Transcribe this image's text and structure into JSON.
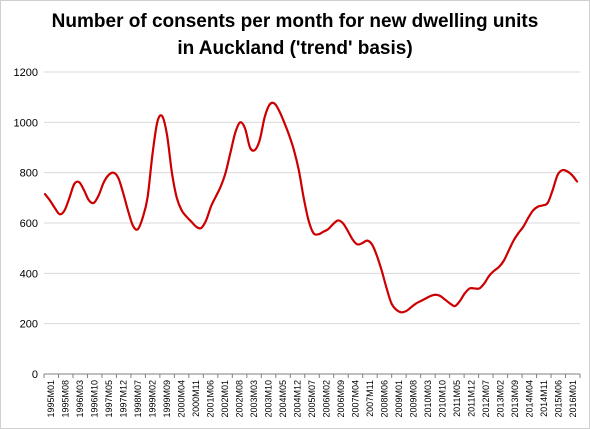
{
  "chart_data": {
    "type": "line",
    "title_line1": "Number of consents per month for new dwelling units",
    "title_line2": "in Auckland ('trend' basis)",
    "xlabel": "",
    "ylabel": "",
    "ylim": [
      0,
      1200
    ],
    "yticks": [
      0,
      200,
      400,
      600,
      800,
      1000,
      1200
    ],
    "grid": "horizontal",
    "line_color": "#cc0000",
    "x_tick_labels": [
      "1995M01",
      "1995M08",
      "1996M03",
      "1996M10",
      "1997M05",
      "1997M12",
      "1998M07",
      "1999M02",
      "1999M09",
      "2000M04",
      "2000M11",
      "2001M06",
      "2002M01",
      "2002M08",
      "2003M03",
      "2003M10",
      "2004M05",
      "2004M12",
      "2005M07",
      "2006M02",
      "2006M09",
      "2007M04",
      "2007M11",
      "2008M06",
      "2009M01",
      "2009M08",
      "2010M03",
      "2010M10",
      "2011M05",
      "2011M12",
      "2012M07",
      "2013M02",
      "2013M09",
      "2014M04",
      "2014M11",
      "2015M06",
      "2016M01"
    ],
    "series": [
      {
        "values": [
          715,
          690,
          660,
          635,
          650,
          700,
          755,
          762,
          730,
          690,
          680,
          710,
          760,
          790,
          800,
          780,
          720,
          650,
          590,
          575,
          620,
          700,
          870,
          1000,
          1025,
          950,
          800,
          700,
          650,
          625,
          605,
          585,
          580,
          610,
          665,
          705,
          745,
          800,
          880,
          960,
          1000,
          975,
          900,
          890,
          930,
          1020,
          1070,
          1075,
          1045,
          1000,
          950,
          890,
          810,
          700,
          610,
          560,
          555,
          565,
          575,
          595,
          610,
          600,
          570,
          535,
          515,
          520,
          530,
          515,
          470,
          410,
          340,
          280,
          255,
          245,
          250,
          265,
          280,
          290,
          300,
          310,
          315,
          310,
          295,
          280,
          270,
          290,
          320,
          340,
          340,
          340,
          360,
          390,
          410,
          425,
          450,
          490,
          530,
          560,
          585,
          620,
          650,
          665,
          670,
          680,
          730,
          790,
          810,
          805,
          790,
          765
        ]
      }
    ]
  }
}
